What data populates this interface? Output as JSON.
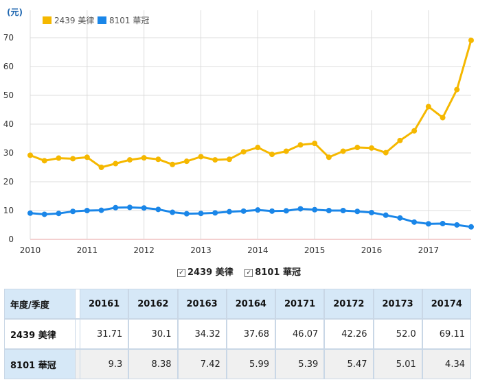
{
  "chart_data": {
    "type": "line",
    "unit_label": "(元)",
    "x_tick_labels": [
      "2010",
      "2011",
      "2012",
      "2013",
      "2014",
      "2015",
      "2016",
      "2017"
    ],
    "x_range": [
      2010,
      2017.75
    ],
    "ylim": [
      0,
      70
    ],
    "y_ticks": [
      0,
      10,
      20,
      30,
      40,
      50,
      60,
      70
    ],
    "grid": true,
    "legend_position": "top-left",
    "series": [
      {
        "name": "2439 美律",
        "color": "#f5b800",
        "x": [
          2010,
          2010.25,
          2010.5,
          2010.75,
          2011,
          2011.25,
          2011.5,
          2011.75,
          2012,
          2012.25,
          2012.5,
          2012.75,
          2013,
          2013.25,
          2013.5,
          2013.75,
          2014,
          2014.25,
          2014.5,
          2014.75,
          2015,
          2015.25,
          2015.5,
          2015.75,
          2016,
          2016.25,
          2016.5,
          2016.75,
          2017,
          2017.25,
          2017.5,
          2017.75
        ],
        "values": [
          29.2,
          27.3,
          28.2,
          28.0,
          28.5,
          25.0,
          26.3,
          27.6,
          28.3,
          27.8,
          26.0,
          27.1,
          28.7,
          27.6,
          27.8,
          30.4,
          31.9,
          29.5,
          30.6,
          32.8,
          33.3,
          28.5,
          30.6,
          31.9,
          31.71,
          30.1,
          34.32,
          37.68,
          46.07,
          42.26,
          52.0,
          69.11
        ]
      },
      {
        "name": "8101 華冠",
        "color": "#1a86e8",
        "x": [
          2010,
          2010.25,
          2010.5,
          2010.75,
          2011,
          2011.25,
          2011.5,
          2011.75,
          2012,
          2012.25,
          2012.5,
          2012.75,
          2013,
          2013.25,
          2013.5,
          2013.75,
          2014,
          2014.25,
          2014.5,
          2014.75,
          2015,
          2015.25,
          2015.5,
          2015.75,
          2016,
          2016.25,
          2016.5,
          2016.75,
          2017,
          2017.25,
          2017.5,
          2017.75
        ],
        "values": [
          9.1,
          8.7,
          9.0,
          9.7,
          10.0,
          10.1,
          11.0,
          11.1,
          10.9,
          10.4,
          9.4,
          8.9,
          9.0,
          9.2,
          9.6,
          9.8,
          10.2,
          9.8,
          9.9,
          10.6,
          10.3,
          10.0,
          10.0,
          9.7,
          9.3,
          8.38,
          7.42,
          5.99,
          5.39,
          5.47,
          5.01,
          4.34
        ]
      }
    ]
  },
  "legend_bottom": [
    {
      "check": "✓",
      "label": "2439 美律"
    },
    {
      "check": "✓",
      "label": "8101 華冠"
    }
  ],
  "table": {
    "header_label": "年度/季度",
    "columns": [
      "20161",
      "20162",
      "20163",
      "20164",
      "20171",
      "20172",
      "20173",
      "20174"
    ],
    "rows": [
      {
        "label": "2439 美律",
        "values": [
          "31.71",
          "30.1",
          "34.32",
          "37.68",
          "46.07",
          "42.26",
          "52.0",
          "69.11"
        ]
      },
      {
        "label": "8101 華冠",
        "values": [
          "9.3",
          "8.38",
          "7.42",
          "5.99",
          "5.39",
          "5.47",
          "5.01",
          "4.34"
        ]
      }
    ]
  }
}
